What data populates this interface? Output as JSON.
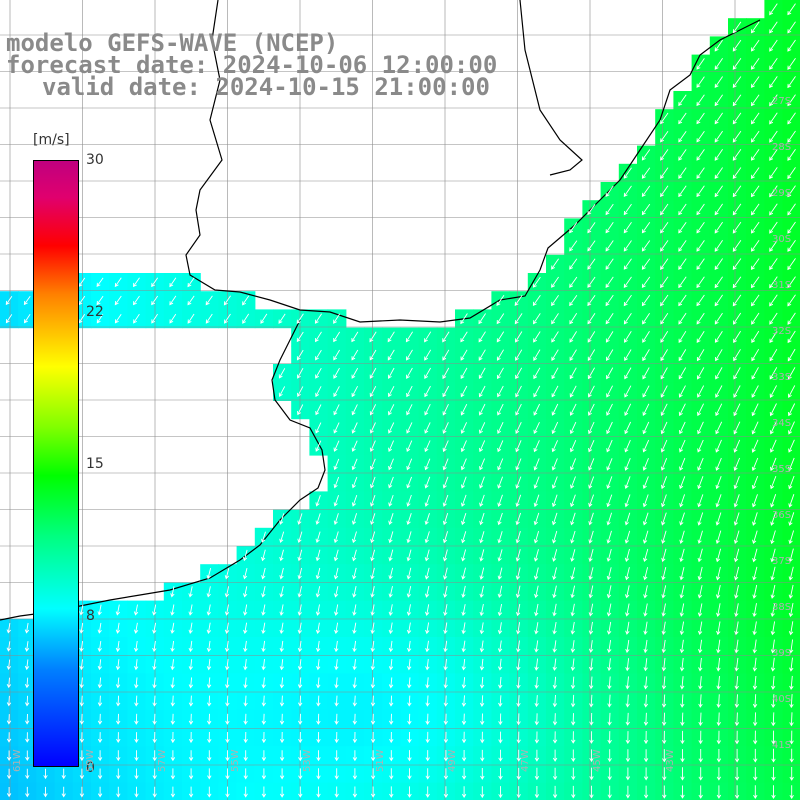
{
  "titles": {
    "model": "modelo GEFS-WAVE (NCEP)",
    "forecast": "forecast date: 2024-10-06 12:00:00",
    "valid": "valid date: 2024-10-15 21:00:00"
  },
  "colorbar": {
    "unit": "[m/s]",
    "ticks": [
      "30",
      "22",
      "15",
      "8",
      "0"
    ],
    "tick_values": [
      30,
      22,
      15,
      8,
      0
    ]
  },
  "colors": {
    "land": "#ffffff",
    "grid": "#8c8c8c",
    "coast": "#000000",
    "arrow": "#ffffff",
    "low_wind": "#1496f0",
    "mid_wind": "#00e6e6",
    "high_wind": "#1ee61e"
  },
  "axis_labels": {
    "lon": [
      "61W",
      "59W",
      "57W",
      "55W",
      "53W",
      "51W",
      "49W",
      "47W",
      "45W",
      "43W"
    ],
    "lat": [
      "27S",
      "28S",
      "29S",
      "30S",
      "31S",
      "32S",
      "33S",
      "34S",
      "35S",
      "36S",
      "37S",
      "38S",
      "39S",
      "40S",
      "41S"
    ]
  },
  "field": {
    "quantity": "wind speed",
    "arrow_direction": "from NE, turning to from N in the south"
  }
}
